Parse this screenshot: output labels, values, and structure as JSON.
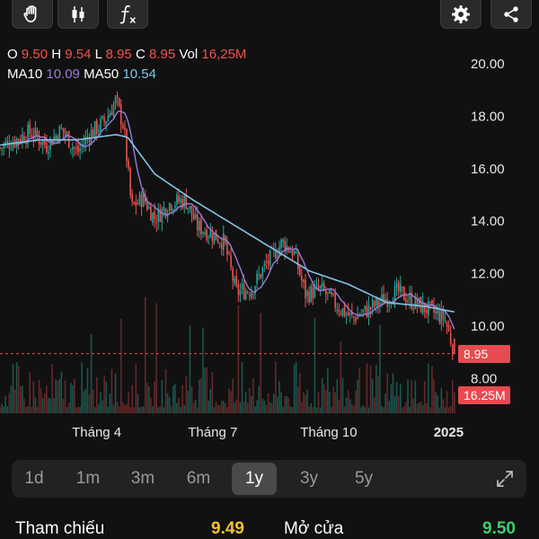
{
  "toolbar": {
    "left_icons": [
      "hand-icon",
      "candlestick-icon",
      "function-icon"
    ],
    "right_icons": [
      "gear-icon",
      "share-icon"
    ]
  },
  "ohlc": {
    "o_label": "O",
    "o_value": "9.50",
    "h_label": "H",
    "h_value": "9.54",
    "l_label": "L",
    "l_value": "8.95",
    "c_label": "C",
    "c_value": "8.95",
    "vol_label": "Vol",
    "vol_value": "16,25M"
  },
  "ma": {
    "ma10_label": "MA10",
    "ma10_value": "10.09",
    "ma50_label": "MA50",
    "ma50_value": "10.54"
  },
  "chart_data": {
    "type": "candlestick",
    "y_ticks": [
      "20.00",
      "18.00",
      "16.00",
      "14.00",
      "12.00",
      "10.00",
      "8.00"
    ],
    "y_tick_values": [
      20,
      18,
      16,
      14,
      12,
      10,
      8
    ],
    "ylim": [
      7.8,
      21.0
    ],
    "x_labels": [
      "Tháng 4",
      "Tháng 7",
      "Tháng 10",
      "2025"
    ],
    "x_label_months": [
      2.5,
      5.5,
      8.5,
      11.6
    ],
    "price_key_points": [
      [
        0,
        16.8
      ],
      [
        0.4,
        17.1
      ],
      [
        0.8,
        17.4
      ],
      [
        1.2,
        16.9
      ],
      [
        1.6,
        17.5
      ],
      [
        2.0,
        16.6
      ],
      [
        2.3,
        17.3
      ],
      [
        2.7,
        17.8
      ],
      [
        3.0,
        18.6
      ],
      [
        3.2,
        17.6
      ],
      [
        3.4,
        14.5
      ],
      [
        3.7,
        14.9
      ],
      [
        4.0,
        14.1
      ],
      [
        4.4,
        14.7
      ],
      [
        4.8,
        14.8
      ],
      [
        5.1,
        13.8
      ],
      [
        5.5,
        13.5
      ],
      [
        5.8,
        13.2
      ],
      [
        6.1,
        11.3
      ],
      [
        6.5,
        11.4
      ],
      [
        6.9,
        12.4
      ],
      [
        7.3,
        13.2
      ],
      [
        7.6,
        12.8
      ],
      [
        7.9,
        11.2
      ],
      [
        8.3,
        11.4
      ],
      [
        8.7,
        10.8
      ],
      [
        9.1,
        10.3
      ],
      [
        9.5,
        10.6
      ],
      [
        9.9,
        11.0
      ],
      [
        10.3,
        11.3
      ],
      [
        10.7,
        10.9
      ],
      [
        11.1,
        10.6
      ],
      [
        11.5,
        10.3
      ],
      [
        11.65,
        9.5
      ],
      [
        11.75,
        8.95
      ]
    ],
    "ma50_key_points": [
      [
        0,
        16.9
      ],
      [
        1.0,
        17.1
      ],
      [
        2.0,
        17.1
      ],
      [
        3.0,
        17.3
      ],
      [
        3.3,
        17.2
      ],
      [
        4.0,
        15.8
      ],
      [
        5.0,
        14.8
      ],
      [
        6.0,
        13.9
      ],
      [
        7.0,
        13.0
      ],
      [
        8.0,
        12.1
      ],
      [
        9.0,
        11.6
      ],
      [
        10.0,
        10.9
      ],
      [
        11.0,
        10.75
      ],
      [
        11.75,
        10.54
      ]
    ],
    "volume_scale_max": 100,
    "last_price": 8.95,
    "last_price_label": "8.95",
    "last_volume_label": "16.25M",
    "colors": {
      "up": "#26a69a",
      "down": "#ef5350",
      "ma10": "#9b7ad8",
      "ma50": "#7fc5e8"
    }
  },
  "periods": {
    "items": [
      "1d",
      "1m",
      "3m",
      "6m",
      "1y",
      "3y",
      "5y"
    ],
    "active": "1y"
  },
  "stats": {
    "ref_label": "Tham chiếu",
    "ref_value": "9.49",
    "open_label": "Mở cửa",
    "open_value": "9.50"
  }
}
